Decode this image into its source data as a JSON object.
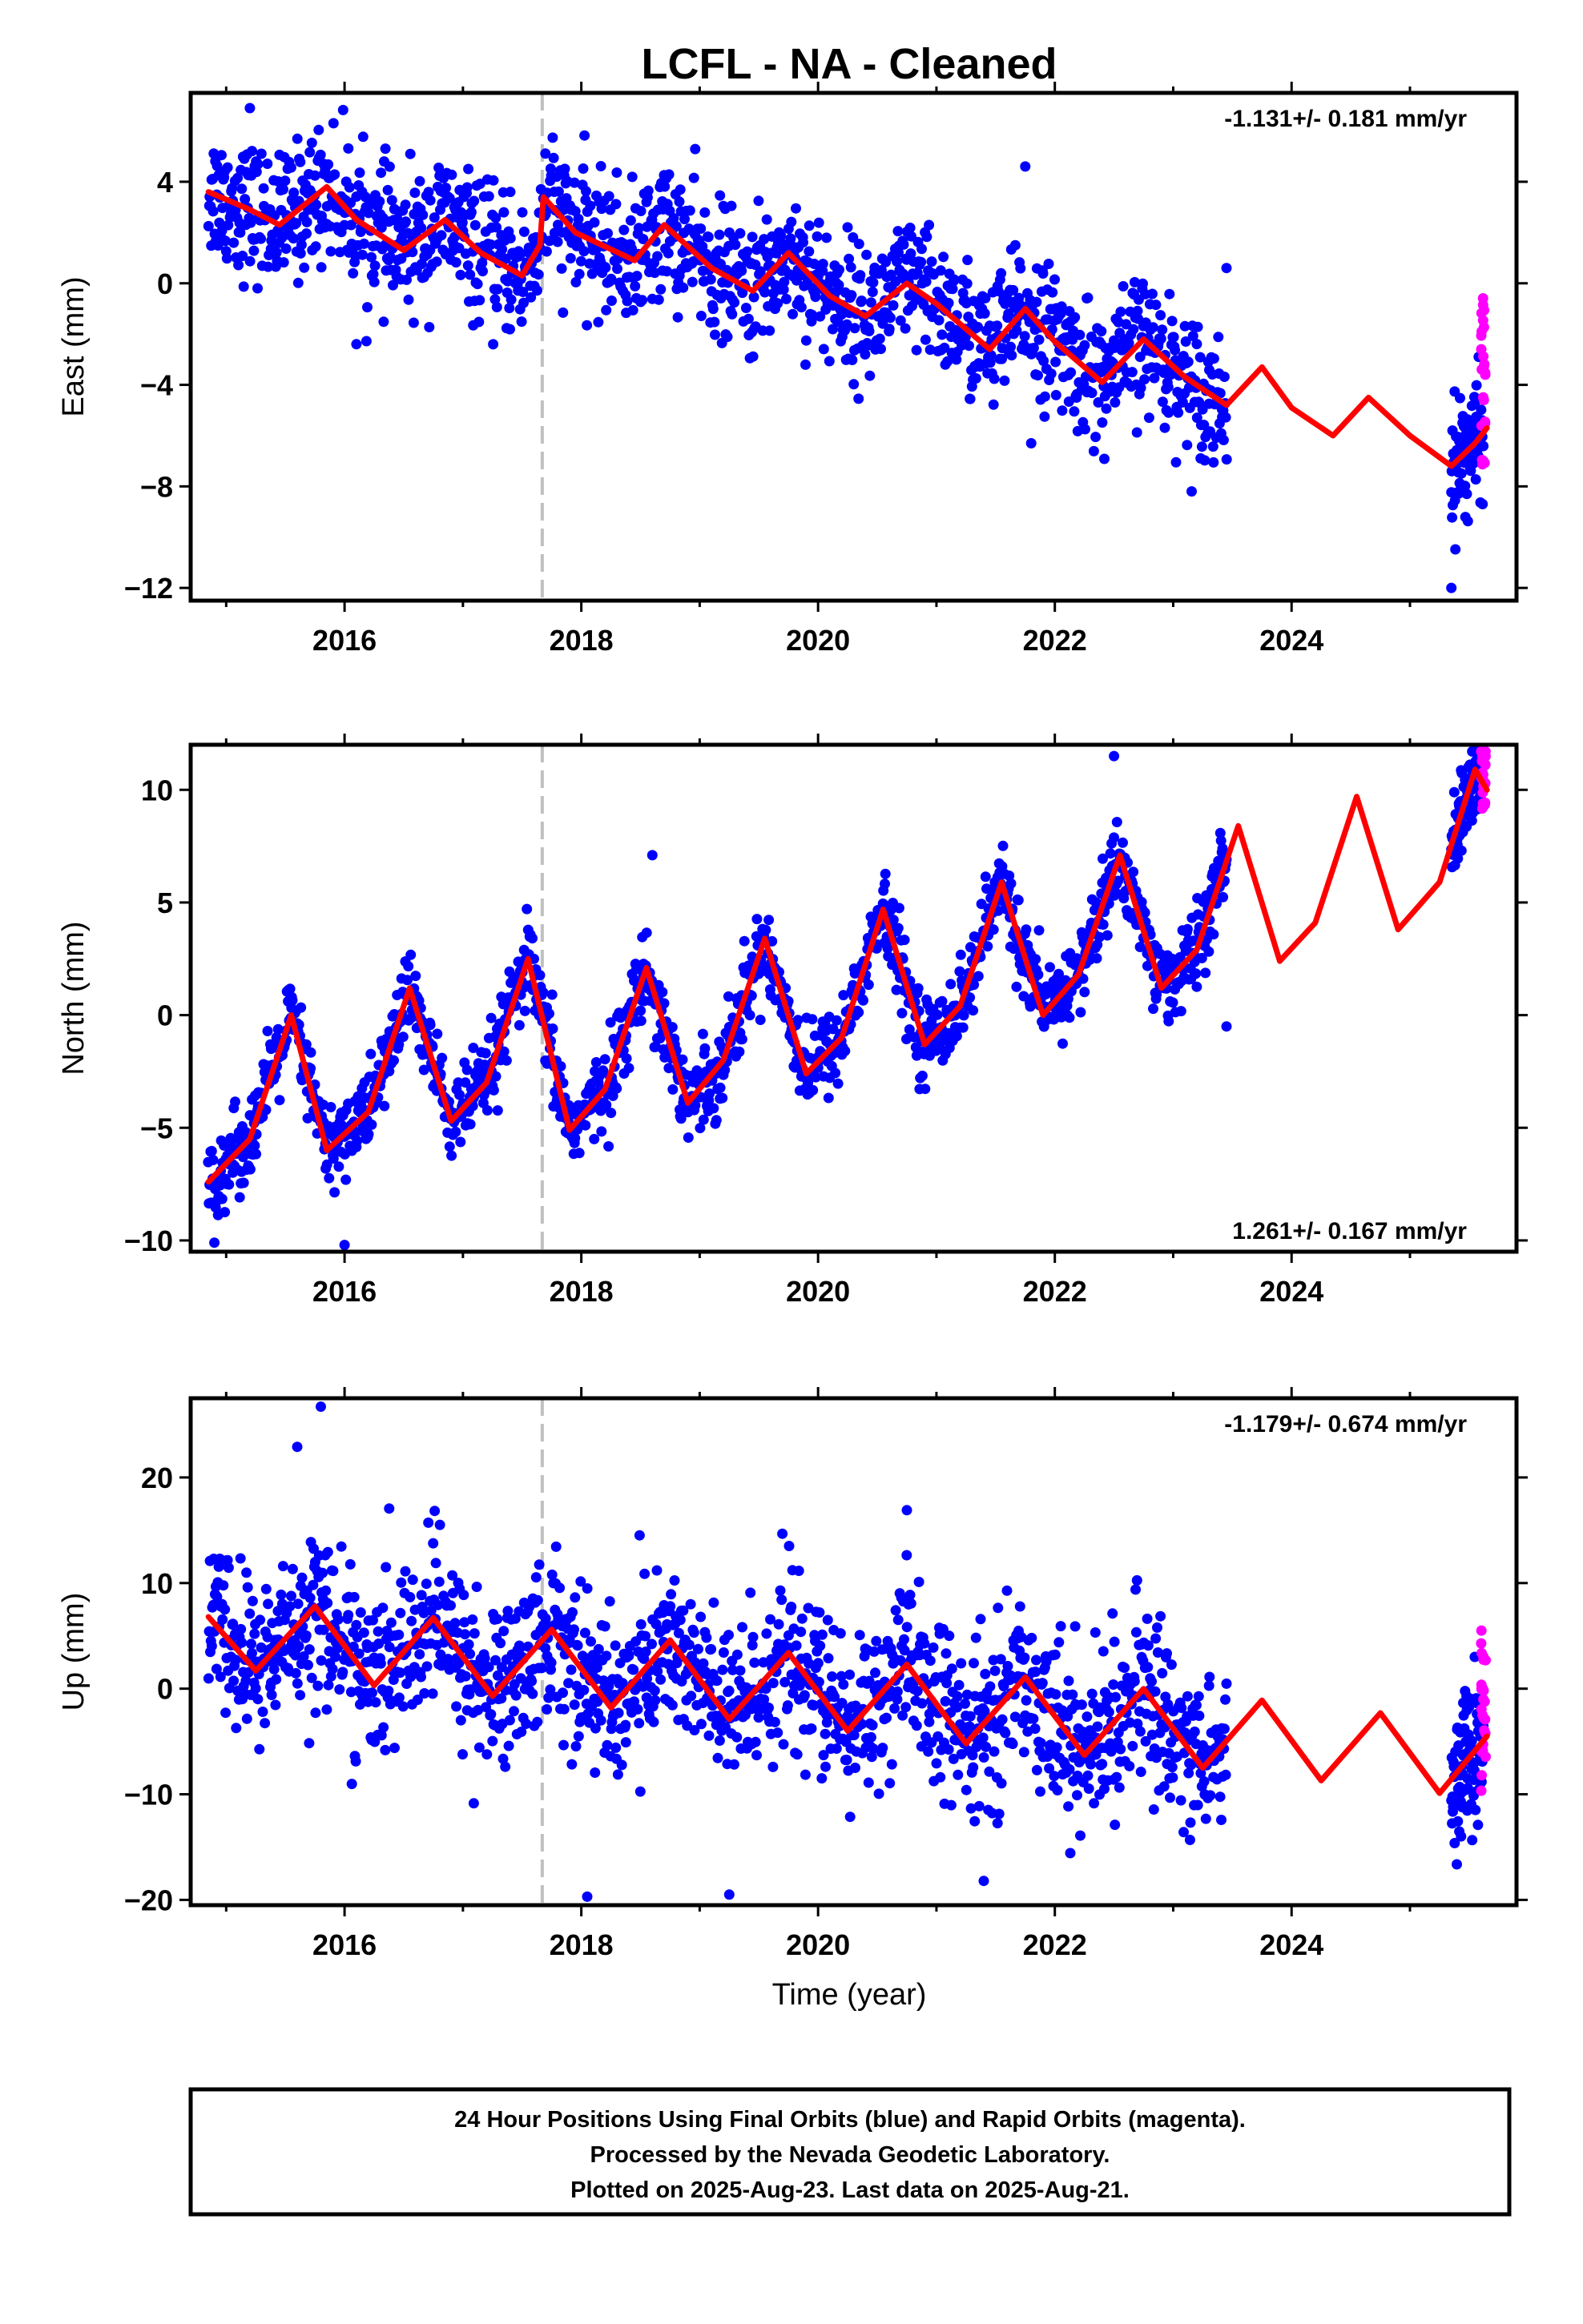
{
  "title": "LCFL  - NA - Cleaned",
  "colors": {
    "final_orbits": "#0000ff",
    "rapid_orbits": "#ff00ff",
    "model": "#ff0000",
    "antenna_change_line": "#c0c0c0",
    "frame": "#000000"
  },
  "x_axis": {
    "label": "Time (year)",
    "range": [
      2014.7,
      2025.9
    ],
    "ticks": [
      2016,
      2018,
      2020,
      2022,
      2024
    ],
    "tick_labels": [
      "2016",
      "2018",
      "2020",
      "2022",
      "2024"
    ]
  },
  "antenna_change_epoch": 2017.67,
  "final_orbit_span": [
    2014.85,
    2023.45
  ],
  "rapid_orbit_span": [
    2025.35,
    2025.62
  ],
  "chart_data": [
    {
      "type": "scatter",
      "component": "east",
      "ylabel": "East (mm)",
      "ylim": [
        -12.5,
        7.5
      ],
      "yticks": [
        4,
        0,
        -4,
        -8,
        -12
      ],
      "ytick_labels": [
        "4",
        "0",
        "-4",
        "-8",
        "-12"
      ],
      "rate_label": "-1.131+/- 0.181 mm/yr",
      "rate_position": "top-right",
      "model_points": [
        [
          2014.85,
          3.6
        ],
        [
          2015.2,
          2.9
        ],
        [
          2015.45,
          2.3
        ],
        [
          2015.85,
          3.8
        ],
        [
          2016.1,
          2.5
        ],
        [
          2016.5,
          1.3
        ],
        [
          2016.85,
          2.5
        ],
        [
          2017.15,
          1.2
        ],
        [
          2017.5,
          0.3
        ],
        [
          2017.65,
          1.5
        ],
        [
          2017.68,
          3.4
        ],
        [
          2017.95,
          2.0
        ],
        [
          2018.45,
          0.9
        ],
        [
          2018.7,
          2.3
        ],
        [
          2019.1,
          0.6
        ],
        [
          2019.45,
          -0.3
        ],
        [
          2019.75,
          1.2
        ],
        [
          2020.1,
          -0.5
        ],
        [
          2020.4,
          -1.3
        ],
        [
          2020.75,
          0.0
        ],
        [
          2021.0,
          -0.8
        ],
        [
          2021.45,
          -2.6
        ],
        [
          2021.75,
          -1.0
        ],
        [
          2022.0,
          -2.3
        ],
        [
          2022.4,
          -3.9
        ],
        [
          2022.75,
          -2.2
        ],
        [
          2023.1,
          -3.7
        ],
        [
          2023.45,
          -4.8
        ],
        [
          2023.75,
          -3.3
        ],
        [
          2024.0,
          -4.9
        ],
        [
          2024.35,
          -6.0
        ],
        [
          2024.65,
          -4.5
        ],
        [
          2025.0,
          -6.0
        ],
        [
          2025.35,
          -7.2
        ],
        [
          2025.55,
          -6.3
        ],
        [
          2025.65,
          -5.7
        ]
      ],
      "scatter": {
        "noise": 1.3,
        "rapid_offset": 3.5,
        "rapid_noise": 1.6,
        "outliers": [
          [
            2015.2,
            6.9
          ],
          [
            2017.4,
            3.6
          ],
          [
            2021.75,
            4.6
          ],
          [
            2021.8,
            -6.3
          ],
          [
            2025.35,
            -12.0
          ],
          [
            2016.1,
            -2.4
          ],
          [
            2023.45,
            0.6
          ]
        ]
      }
    },
    {
      "type": "scatter",
      "component": "north",
      "ylabel": "North (mm)",
      "ylim": [
        -10.5,
        12
      ],
      "yticks": [
        10,
        5,
        0,
        -5,
        -10
      ],
      "ytick_labels": [
        "10",
        "5",
        "0",
        "-5",
        "-10"
      ],
      "rate_label": "1.261+/- 0.167 mm/yr",
      "rate_position": "bottom-right",
      "model_points": [
        [
          2014.85,
          -7.4
        ],
        [
          2015.2,
          -5.5
        ],
        [
          2015.55,
          0.0
        ],
        [
          2015.85,
          -6.0
        ],
        [
          2016.2,
          -4.3
        ],
        [
          2016.55,
          1.2
        ],
        [
          2016.9,
          -4.7
        ],
        [
          2017.2,
          -3.0
        ],
        [
          2017.55,
          2.5
        ],
        [
          2017.9,
          -5.1
        ],
        [
          2018.2,
          -3.3
        ],
        [
          2018.55,
          2.1
        ],
        [
          2018.9,
          -3.9
        ],
        [
          2019.2,
          -2.0
        ],
        [
          2019.55,
          3.4
        ],
        [
          2019.9,
          -2.6
        ],
        [
          2020.2,
          -1.0
        ],
        [
          2020.55,
          4.7
        ],
        [
          2020.9,
          -1.3
        ],
        [
          2021.2,
          0.4
        ],
        [
          2021.55,
          5.9
        ],
        [
          2021.9,
          0.0
        ],
        [
          2022.2,
          1.8
        ],
        [
          2022.55,
          7.1
        ],
        [
          2022.9,
          1.2
        ],
        [
          2023.2,
          2.9
        ],
        [
          2023.55,
          8.4
        ],
        [
          2023.9,
          2.4
        ],
        [
          2024.2,
          4.1
        ],
        [
          2024.55,
          9.7
        ],
        [
          2024.9,
          3.8
        ],
        [
          2025.25,
          5.9
        ],
        [
          2025.55,
          10.9
        ],
        [
          2025.65,
          10.0
        ]
      ],
      "scatter": {
        "noise": 0.9,
        "rapid_offset": 1.5,
        "rapid_noise": 1.2,
        "outliers": [
          [
            2022.5,
            11.5
          ],
          [
            2014.9,
            -10.1
          ],
          [
            2016.0,
            -10.2
          ],
          [
            2018.6,
            7.1
          ],
          [
            2023.45,
            -0.5
          ]
        ]
      }
    },
    {
      "type": "scatter",
      "component": "up",
      "ylabel": "Up (mm)",
      "ylim": [
        -20.5,
        27.5
      ],
      "yticks": [
        20,
        10,
        0,
        -10,
        -20
      ],
      "ytick_labels": [
        "20",
        "10",
        "0",
        "-10",
        "-20"
      ],
      "rate_label": "-1.179+/- 0.674 mm/yr",
      "rate_position": "top-right",
      "model_points": [
        [
          2014.85,
          6.8
        ],
        [
          2015.25,
          1.7
        ],
        [
          2015.75,
          7.8
        ],
        [
          2016.25,
          0.3
        ],
        [
          2016.75,
          6.7
        ],
        [
          2017.25,
          -0.7
        ],
        [
          2017.75,
          5.6
        ],
        [
          2018.25,
          -1.8
        ],
        [
          2018.75,
          4.6
        ],
        [
          2019.25,
          -2.9
        ],
        [
          2019.75,
          3.4
        ],
        [
          2020.25,
          -4.0
        ],
        [
          2020.75,
          2.3
        ],
        [
          2021.25,
          -5.2
        ],
        [
          2021.75,
          1.1
        ],
        [
          2022.25,
          -6.3
        ],
        [
          2022.75,
          0.0
        ],
        [
          2023.25,
          -7.5
        ],
        [
          2023.75,
          -1.1
        ],
        [
          2024.25,
          -8.7
        ],
        [
          2024.75,
          -2.3
        ],
        [
          2025.25,
          -9.9
        ],
        [
          2025.65,
          -4.5
        ]
      ],
      "scatter": {
        "noise": 4.0,
        "rapid_offset": 6.0,
        "rapid_noise": 5.0,
        "outliers": [
          [
            2015.8,
            26.7
          ],
          [
            2015.6,
            22.9
          ],
          [
            2018.05,
            -19.7
          ],
          [
            2019.25,
            -19.5
          ],
          [
            2020.75,
            16.9
          ],
          [
            2021.4,
            -18.2
          ]
        ]
      }
    }
  ],
  "footer": {
    "line1": "24 Hour Positions Using Final Orbits (blue) and Rapid Orbits (magenta).",
    "line2": "Processed by the Nevada Geodetic Laboratory.",
    "line3": "Plotted on 2025-Aug-23. Last data on 2025-Aug-21."
  }
}
